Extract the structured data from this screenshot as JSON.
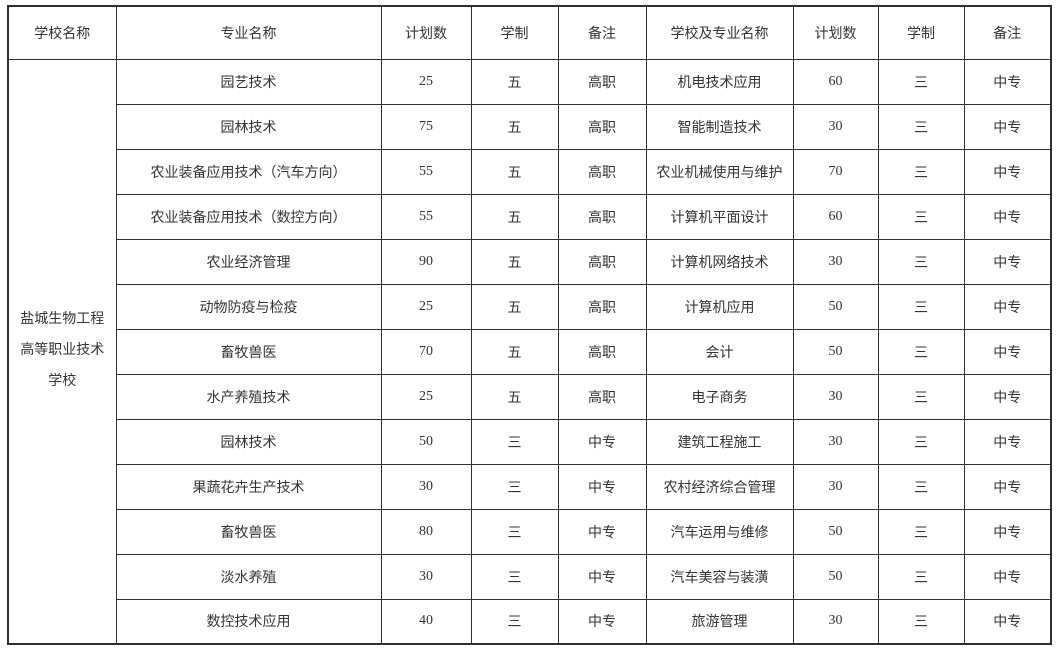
{
  "table": {
    "colors": {
      "border": "#2f2f2f",
      "text": "#333333",
      "background": "#ffffff"
    },
    "headers": [
      "学校名称",
      "专业名称",
      "计划数",
      "学制",
      "备注",
      "学校及专业名称",
      "计划数",
      "学制",
      "备注"
    ],
    "school_name": "盐城生物工程高等职业技术学校",
    "rows": [
      {
        "major": "园艺技术",
        "plan": "25",
        "years": "五",
        "note": "高职",
        "major2": "机电技术应用",
        "plan2": "60",
        "years2": "三",
        "note2": "中专"
      },
      {
        "major": "园林技术",
        "plan": "75",
        "years": "五",
        "note": "高职",
        "major2": "智能制造技术",
        "plan2": "30",
        "years2": "三",
        "note2": "中专"
      },
      {
        "major": "农业装备应用技术（汽车方向）",
        "plan": "55",
        "years": "五",
        "note": "高职",
        "major2": "农业机械使用与维护",
        "plan2": "70",
        "years2": "三",
        "note2": "中专"
      },
      {
        "major": "农业装备应用技术（数控方向）",
        "plan": "55",
        "years": "五",
        "note": "高职",
        "major2": "计算机平面设计",
        "plan2": "60",
        "years2": "三",
        "note2": "中专"
      },
      {
        "major": "农业经济管理",
        "plan": "90",
        "years": "五",
        "note": "高职",
        "major2": "计算机网络技术",
        "plan2": "30",
        "years2": "三",
        "note2": "中专"
      },
      {
        "major": "动物防疫与检疫",
        "plan": "25",
        "years": "五",
        "note": "高职",
        "major2": "计算机应用",
        "plan2": "50",
        "years2": "三",
        "note2": "中专"
      },
      {
        "major": "畜牧兽医",
        "plan": "70",
        "years": "五",
        "note": "高职",
        "major2": "会计",
        "plan2": "50",
        "years2": "三",
        "note2": "中专"
      },
      {
        "major": "水产养殖技术",
        "plan": "25",
        "years": "五",
        "note": "高职",
        "major2": "电子商务",
        "plan2": "30",
        "years2": "三",
        "note2": "中专"
      },
      {
        "major": "园林技术",
        "plan": "50",
        "years": "三",
        "note": "中专",
        "major2": "建筑工程施工",
        "plan2": "30",
        "years2": "三",
        "note2": "中专"
      },
      {
        "major": "果蔬花卉生产技术",
        "plan": "30",
        "years": "三",
        "note": "中专",
        "major2": "农村经济综合管理",
        "plan2": "30",
        "years2": "三",
        "note2": "中专"
      },
      {
        "major": "畜牧兽医",
        "plan": "80",
        "years": "三",
        "note": "中专",
        "major2": "汽车运用与维修",
        "plan2": "50",
        "years2": "三",
        "note2": "中专"
      },
      {
        "major": "淡水养殖",
        "plan": "30",
        "years": "三",
        "note": "中专",
        "major2": "汽车美容与装潢",
        "plan2": "50",
        "years2": "三",
        "note2": "中专"
      },
      {
        "major": "数控技术应用",
        "plan": "40",
        "years": "三",
        "note": "中专",
        "major2": "旅游管理",
        "plan2": "30",
        "years2": "三",
        "note2": "中专"
      }
    ]
  }
}
